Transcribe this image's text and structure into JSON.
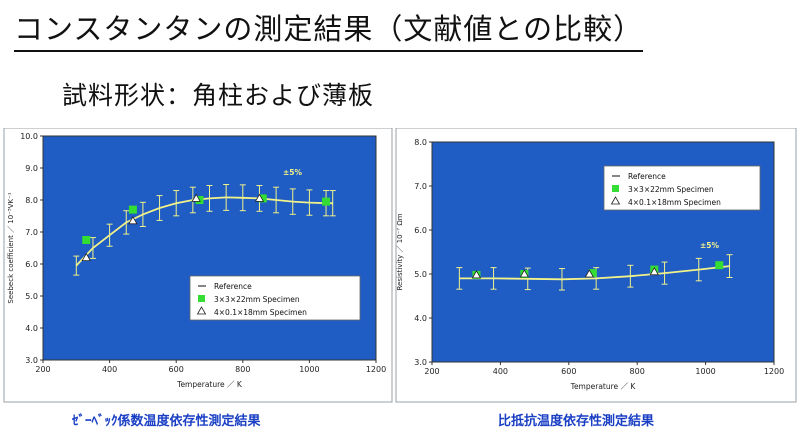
{
  "page": {
    "title": "コンスタンタンの測定結果（文献値との比較）",
    "subtitle": "試料形状：角柱および薄板"
  },
  "colors": {
    "plot_bg": "#1f5cc4",
    "reference_line": "#f2f28a",
    "error_bar": "#f2f28a",
    "specimen_square": "#33dd33",
    "legend_bg": "#ffffff",
    "caption": "#1a3fc4"
  },
  "chart_data": [
    {
      "type": "scatter",
      "title": "",
      "caption": "ｾﾞｰﾍﾞｯｸ係数温度依存性測定結果",
      "xlabel": "Temperature ／ K",
      "ylabel": "Seebeck coefficient ／ 10⁻⁵VK⁻¹",
      "xlim": [
        200,
        1200
      ],
      "ylim": [
        3.0,
        10.0
      ],
      "xticks": [
        "200",
        "400",
        "600",
        "800",
        "1000",
        "1200"
      ],
      "yticks": [
        "3.0",
        "4.0",
        "5.0",
        "6.0",
        "7.0",
        "8.0",
        "9.0",
        "10.0"
      ],
      "annotation": "±5%",
      "legend": [
        "Reference",
        "3×3×22mm Specimen",
        "4×0.1×18mm Specimen"
      ],
      "grid": false,
      "legend_position": "lower-right",
      "series": [
        {
          "name": "Reference",
          "kind": "line-errorbar",
          "x": [
            300,
            350,
            400,
            450,
            500,
            550,
            600,
            650,
            700,
            750,
            800,
            850,
            900,
            950,
            1000,
            1050,
            1070
          ],
          "y": [
            5.95,
            6.5,
            6.9,
            7.3,
            7.55,
            7.75,
            7.9,
            8.0,
            8.05,
            8.08,
            8.07,
            8.05,
            8.0,
            7.95,
            7.92,
            7.9,
            7.9
          ],
          "err_pct": 5
        },
        {
          "name": "3×3×22mm Specimen",
          "kind": "square",
          "x": [
            330,
            470,
            670,
            860,
            1050
          ],
          "y": [
            6.75,
            7.7,
            8.0,
            8.05,
            7.95
          ]
        },
        {
          "name": "4×0.1×18mm Specimen",
          "kind": "triangle",
          "x": [
            330,
            470,
            660,
            850
          ],
          "y": [
            6.2,
            7.35,
            8.05,
            8.05
          ]
        }
      ]
    },
    {
      "type": "scatter",
      "title": "",
      "caption": "比抵抗温度依存性測定結果",
      "xlabel": "Temperature ／ K",
      "ylabel": "Resistivity ／ 10⁻⁷ Ωm",
      "xlim": [
        200,
        1200
      ],
      "ylim": [
        3.0,
        8.0
      ],
      "xticks": [
        "200",
        "400",
        "600",
        "800",
        "1000",
        "1200"
      ],
      "yticks": [
        "3.0",
        "4.0",
        "5.0",
        "6.0",
        "7.0",
        "8.0"
      ],
      "annotation": "±5%",
      "legend": [
        "Reference",
        "3×3×22mm Specimen",
        "4×0.1×18mm Specimen"
      ],
      "grid": false,
      "legend_position": "upper-right",
      "series": [
        {
          "name": "Reference",
          "kind": "line-errorbar",
          "x": [
            280,
            380,
            480,
            580,
            680,
            780,
            880,
            980,
            1070
          ],
          "y": [
            4.9,
            4.9,
            4.89,
            4.88,
            4.9,
            4.95,
            5.02,
            5.1,
            5.18
          ],
          "err_pct": 5
        },
        {
          "name": "3×3×22mm Specimen",
          "kind": "square",
          "x": [
            330,
            470,
            670,
            850,
            1040
          ],
          "y": [
            4.98,
            5.0,
            5.02,
            5.1,
            5.2
          ]
        },
        {
          "name": "4×0.1×18mm Specimen",
          "kind": "triangle",
          "x": [
            330,
            470,
            660,
            850
          ],
          "y": [
            4.98,
            5.0,
            5.0,
            5.05
          ]
        }
      ]
    }
  ]
}
